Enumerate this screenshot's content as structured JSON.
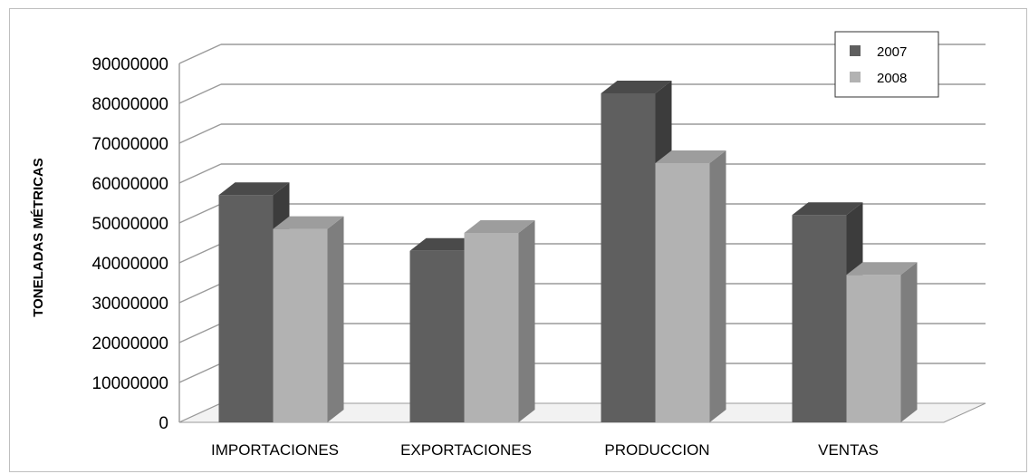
{
  "chart_data": {
    "type": "bar",
    "style": "3d-clustered-column",
    "title": "",
    "xlabel": "",
    "ylabel": "TONELADAS MÉTRICAS",
    "categories": [
      "IMPORTACIONES",
      "EXPORTACIONES",
      "PRODUCCION",
      "VENTAS"
    ],
    "series": [
      {
        "name": "2007",
        "values": [
          57000000,
          43000000,
          82500000,
          52000000
        ]
      },
      {
        "name": "2008",
        "values": [
          48500000,
          47500000,
          65000000,
          37000000
        ]
      }
    ],
    "ylim": [
      0,
      90000000
    ],
    "yticks": [
      "0",
      "10000000",
      "20000000",
      "30000000",
      "40000000",
      "50000000",
      "60000000",
      "70000000",
      "80000000",
      "90000000"
    ],
    "grid": true,
    "legend_position": "top-right",
    "colors": {
      "series_2007": {
        "front": "#5f5f5f",
        "side": "#3c3c3c",
        "top": "#4a4a4a"
      },
      "series_2008": {
        "front": "#b2b2b2",
        "side": "#7e7e7e",
        "top": "#9d9d9d"
      },
      "grid": "#9a9a9a",
      "floor": "#f2f2f2"
    }
  }
}
